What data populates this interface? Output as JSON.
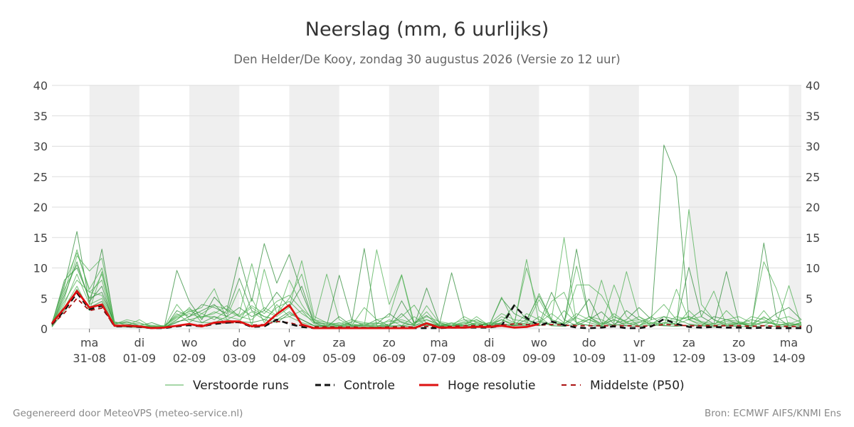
{
  "chart_data": {
    "type": "line",
    "title": "Neerslag (mm, 6 uurlijks)",
    "subtitle": "Den Helder/De Kooy, zondag 30 augustus 2026 (Versie zo 12 uur)",
    "ylim": [
      0,
      40
    ],
    "yticks": [
      0,
      5,
      10,
      15,
      20,
      25,
      30,
      35,
      40
    ],
    "days": [
      {
        "weekday": "ma",
        "date": "31-08"
      },
      {
        "weekday": "di",
        "date": "01-09"
      },
      {
        "weekday": "wo",
        "date": "02-09"
      },
      {
        "weekday": "do",
        "date": "03-09"
      },
      {
        "weekday": "vr",
        "date": "04-09"
      },
      {
        "weekday": "za",
        "date": "05-09"
      },
      {
        "weekday": "zo",
        "date": "06-09"
      },
      {
        "weekday": "ma",
        "date": "07-09"
      },
      {
        "weekday": "di",
        "date": "08-09"
      },
      {
        "weekday": "wo",
        "date": "09-09"
      },
      {
        "weekday": "do",
        "date": "10-09"
      },
      {
        "weekday": "vr",
        "date": "11-09"
      },
      {
        "weekday": "za",
        "date": "12-09"
      },
      {
        "weekday": "zo",
        "date": "13-09"
      },
      {
        "weekday": "ma",
        "date": "14-09"
      }
    ],
    "x_hours_from_start": [
      -18,
      -12,
      -6,
      0,
      6,
      12,
      18,
      24,
      30,
      36,
      42,
      48,
      54,
      60,
      66,
      72,
      78,
      84,
      90,
      96,
      102,
      108,
      114,
      120,
      126,
      132,
      138,
      144,
      150,
      156,
      162,
      168,
      174,
      180,
      186,
      192,
      198,
      204,
      210,
      216,
      222,
      228,
      234,
      240,
      246,
      252,
      258,
      264,
      270,
      276,
      282,
      288,
      294,
      300,
      306,
      312,
      318,
      324,
      330,
      336,
      342
    ],
    "x_range_hours": [
      -18,
      342
    ],
    "shaded_days_index": [
      0,
      2,
      4,
      6,
      8,
      10,
      12,
      14
    ],
    "legend": {
      "placement": "bottom",
      "items": [
        {
          "label": "Verstoorde runs",
          "color": "#4caf50",
          "style": "thin"
        },
        {
          "label": "Controle",
          "color": "#111111",
          "style": "dashed"
        },
        {
          "label": "Hoge resolutie",
          "color": "#dd1111",
          "style": "solid"
        },
        {
          "label": "Middelste (P50)",
          "color": "#aa1111",
          "style": "dashed"
        }
      ]
    },
    "series": [
      {
        "name": "Controle",
        "values": [
          0.8,
          3.0,
          5.9,
          3.2,
          3.8,
          0.4,
          0.4,
          0.3,
          0.1,
          0.1,
          0.4,
          0.6,
          0.4,
          0.8,
          1.0,
          1.1,
          0.3,
          0.4,
          1.5,
          0.8,
          0.3,
          0.1,
          0.1,
          0.1,
          0.1,
          0.1,
          0.1,
          0.1,
          0.1,
          0.1,
          0.1,
          0.1,
          0.2,
          0.2,
          0.2,
          0.2,
          0.5,
          3.8,
          1.8,
          0.5,
          1.2,
          0.6,
          0.2,
          0.1,
          0.2,
          0.4,
          0.1,
          0.1,
          0.4,
          1.6,
          0.8,
          0.3,
          0.2,
          0.3,
          0.2,
          0.2,
          0.1,
          0.2,
          0.1,
          0.1,
          0.1
        ]
      },
      {
        "name": "Hoge resolutie",
        "values": [
          0.9,
          3.4,
          6.2,
          3.5,
          4.0,
          0.5,
          0.5,
          0.4,
          0.1,
          0.2,
          0.5,
          0.8,
          0.4,
          1.0,
          1.2,
          1.2,
          0.4,
          0.6,
          2.4,
          3.9,
          0.7,
          0.1,
          0.1,
          0.1,
          0.1,
          0.1,
          0.1,
          0.1,
          0.1,
          0.1,
          0.9,
          0.2,
          0.2,
          0.2,
          0.3,
          0.3,
          0.5,
          0.2,
          0.3,
          0.8
        ]
      },
      {
        "name": "Middelste (P50)",
        "values": [
          0.7,
          2.6,
          5.0,
          3.0,
          3.4,
          0.5,
          0.4,
          0.3,
          0.2,
          0.2,
          0.5,
          0.7,
          0.6,
          0.9,
          1.0,
          1.0,
          0.6,
          0.7,
          1.2,
          1.0,
          0.5,
          0.3,
          0.3,
          0.3,
          0.3,
          0.2,
          0.2,
          0.3,
          0.3,
          0.3,
          0.4,
          0.3,
          0.4,
          0.5,
          0.5,
          0.5,
          0.6,
          0.8,
          0.7,
          0.6,
          0.7,
          0.6,
          0.5,
          0.5,
          0.5,
          0.5,
          0.5,
          0.4,
          0.5,
          0.7,
          0.6,
          0.5,
          0.5,
          0.5,
          0.5,
          0.5,
          0.4,
          0.5,
          0.4,
          0.4,
          0.4
        ]
      },
      {
        "name": "Verstoorde runs",
        "values": [
          1.0,
          7.0,
          16.0,
          4.0,
          13.1,
          0.8,
          1.2,
          0.5,
          1.0,
          0.3,
          9.6,
          4.5,
          1.5,
          5.2,
          3.0,
          11.8,
          4.5,
          14.0,
          7.5,
          12.2,
          6.0,
          1.0,
          0.8,
          0.6,
          1.0,
          13.2,
          0.5,
          0.5,
          2.5,
          0.5,
          6.7,
          1.0,
          0.5,
          0.8,
          1.5,
          0.5,
          5.0,
          2.5,
          1.5,
          0.8,
          6.0,
          1.5,
          0.5,
          1.5,
          2.8,
          0.8,
          1.5,
          3.5,
          1.5,
          30.2,
          25.0,
          1.5,
          3.0,
          1.5,
          0.5,
          0.8,
          1.5,
          1.0,
          0.8,
          0.5,
          0.8
        ]
      },
      {
        "name": "Verstoorde runs",
        "values": [
          0.5,
          5.0,
          12.0,
          9.5,
          11.6,
          1.2,
          0.5,
          1.5,
          0.3,
          0.5,
          2.0,
          2.8,
          3.5,
          6.6,
          1.5,
          2.5,
          10.7,
          3.0,
          2.0,
          3.5,
          11.2,
          2.0,
          1.0,
          0.5,
          0.8,
          0.5,
          13.0,
          4.0,
          8.9,
          1.0,
          1.5,
          0.5,
          0.8,
          0.5,
          2.0,
          0.5,
          1.5,
          0.8,
          10.0,
          3.0,
          1.5,
          15.0,
          0.8,
          2.0,
          1.5,
          0.5,
          1.0,
          2.0,
          0.5,
          1.0,
          0.5,
          19.6,
          4.0,
          1.5,
          0.8,
          0.5,
          2.0,
          1.5,
          0.5,
          1.0,
          0.5
        ]
      },
      {
        "name": "Verstoorde runs",
        "values": [
          0.6,
          6.0,
          13.0,
          6.0,
          8.0,
          0.5,
          0.3,
          0.5,
          0.2,
          0.2,
          1.5,
          3.0,
          2.0,
          2.5,
          3.8,
          2.0,
          1.5,
          3.5,
          2.2,
          8.0,
          4.0,
          1.0,
          9.0,
          1.5,
          0.5,
          3.5,
          1.5,
          2.0,
          8.8,
          0.5,
          3.8,
          1.0,
          0.5,
          2.0,
          1.0,
          0.5,
          1.5,
          0.5,
          11.4,
          1.0,
          2.5,
          1.0,
          10.3,
          2.0,
          0.5,
          7.2,
          2.0,
          0.5,
          1.5,
          2.0,
          0.5,
          3.0,
          1.0,
          0.5,
          0.8,
          1.0,
          0.5,
          3.0,
          0.5,
          0.8,
          0.5
        ]
      },
      {
        "name": "Verstoorde runs",
        "values": [
          0.8,
          8.0,
          10.0,
          5.0,
          6.0,
          1.0,
          0.8,
          0.5,
          0.3,
          0.2,
          1.0,
          2.0,
          4.0,
          3.5,
          2.5,
          8.3,
          3.0,
          2.0,
          1.5,
          2.8,
          1.5,
          0.5,
          0.5,
          8.8,
          1.5,
          0.5,
          0.8,
          2.5,
          1.0,
          0.5,
          1.0,
          0.5,
          9.2,
          1.5,
          0.5,
          1.0,
          0.8,
          0.5,
          1.5,
          5.4,
          1.5,
          0.8,
          13.1,
          2.0,
          0.8,
          1.5,
          0.5,
          1.0,
          2.0,
          0.5,
          1.0,
          10.1,
          2.0,
          0.8,
          9.4,
          1.0,
          0.5,
          14.1,
          2.0,
          0.5,
          1.0
        ]
      },
      {
        "name": "Verstoorde runs",
        "values": [
          0.4,
          4.0,
          9.0,
          4.0,
          5.0,
          0.5,
          0.5,
          0.3,
          0.2,
          0.3,
          4.0,
          1.5,
          2.0,
          2.0,
          1.5,
          1.0,
          5.0,
          1.0,
          4.0,
          2.0,
          1.0,
          0.5,
          0.5,
          0.5,
          0.5,
          0.8,
          1.0,
          0.5,
          2.0,
          3.9,
          0.8,
          0.5,
          0.5,
          0.8,
          1.5,
          0.5,
          5.2,
          1.0,
          0.5,
          2.0,
          0.5,
          1.0,
          7.2,
          7.2,
          5.5,
          2.0,
          1.0,
          0.5,
          2.0,
          4.0,
          1.5,
          2.0,
          1.0,
          0.5,
          3.0,
          1.0,
          0.8,
          11.0,
          6.6,
          0.5,
          0.8
        ]
      },
      {
        "name": "Verstoorde runs",
        "values": [
          0.5,
          3.5,
          7.0,
          3.0,
          9.4,
          0.8,
          1.5,
          1.0,
          0.3,
          0.2,
          1.5,
          3.5,
          1.0,
          1.0,
          2.0,
          6.6,
          0.5,
          9.8,
          2.5,
          5.0,
          9.0,
          1.5,
          0.5,
          1.0,
          0.5,
          0.5,
          0.5,
          0.5,
          0.5,
          0.8,
          2.8,
          0.5,
          1.0,
          0.5,
          1.0,
          0.5,
          0.8,
          0.5,
          1.0,
          0.5,
          4.5,
          6.0,
          1.0,
          0.5,
          8.0,
          1.0,
          9.4,
          2.0,
          1.0,
          0.5,
          6.5,
          1.5,
          2.0,
          6.2,
          0.5,
          1.0,
          0.5,
          2.0,
          0.5,
          7.1,
          0.5
        ]
      },
      {
        "name": "Verstoorde runs",
        "values": [
          0.6,
          5.5,
          11.0,
          4.5,
          7.0,
          0.5,
          0.5,
          0.3,
          0.2,
          0.1,
          3.0,
          2.0,
          3.0,
          4.0,
          2.0,
          3.5,
          2.0,
          3.0,
          6.0,
          3.5,
          7.0,
          1.0,
          0.3,
          2.0,
          0.5,
          0.5,
          1.5,
          0.5,
          4.6,
          1.0,
          2.2,
          0.5,
          0.5,
          0.5,
          0.8,
          0.5,
          1.0,
          4.0,
          1.5,
          0.5,
          1.0,
          0.8,
          2.0,
          4.9,
          1.0,
          0.5,
          3.0,
          1.5,
          0.8,
          2.0,
          1.5,
          0.8,
          0.5,
          2.0,
          1.5,
          0.8,
          0.5,
          1.0,
          2.5,
          3.5,
          1.5
        ]
      },
      {
        "name": "Verstoorde runs",
        "values": [
          0.5,
          4.5,
          8.0,
          6.0,
          5.5,
          0.8,
          0.4,
          0.4,
          0.5,
          0.3,
          2.5,
          1.0,
          2.5,
          1.5,
          3.0,
          2.0,
          3.5,
          2.0,
          1.5,
          2.0,
          3.0,
          0.8,
          0.5,
          0.3,
          0.8,
          0.5,
          0.3,
          1.5,
          0.5,
          2.0,
          0.5,
          0.8,
          0.5,
          1.0,
          0.5,
          0.8,
          1.5,
          0.5,
          2.5,
          1.5,
          0.5,
          3.0,
          1.0,
          1.5,
          0.5,
          2.5,
          1.0,
          0.5,
          1.0,
          0.8,
          2.0,
          1.5,
          0.5,
          0.8,
          1.5,
          2.0,
          1.0,
          0.5,
          1.5,
          2.0,
          1.0
        ]
      },
      {
        "name": "Verstoorde runs",
        "values": [
          0.7,
          6.5,
          10.5,
          5.0,
          9.0,
          0.6,
          0.6,
          0.5,
          0.4,
          0.4,
          1.8,
          2.5,
          1.8,
          2.8,
          2.0,
          1.5,
          2.8,
          1.5,
          3.5,
          4.5,
          2.5,
          1.2,
          0.8,
          0.5,
          1.2,
          0.8,
          0.5,
          0.8,
          1.2,
          0.5,
          1.5,
          0.8,
          0.5,
          1.2,
          0.8,
          0.5,
          2.0,
          1.0,
          0.8,
          4.8,
          1.2,
          0.5,
          1.8,
          1.0,
          0.5,
          1.5,
          0.8,
          1.2,
          0.5,
          1.0,
          0.8,
          1.5,
          0.8,
          0.5,
          1.2,
          0.8,
          0.5,
          1.2,
          0.8,
          0.5,
          1.0
        ]
      },
      {
        "name": "Verstoorde runs",
        "values": [
          0.3,
          3.0,
          6.5,
          3.5,
          4.5,
          0.4,
          0.3,
          0.2,
          0.1,
          0.2,
          1.2,
          1.5,
          1.0,
          2.0,
          1.0,
          1.2,
          1.0,
          1.5,
          1.0,
          2.5,
          1.5,
          0.5,
          0.3,
          0.3,
          0.4,
          0.3,
          0.3,
          0.4,
          0.5,
          0.3,
          0.6,
          0.4,
          0.3,
          0.5,
          0.4,
          0.3,
          0.8,
          0.5,
          0.6,
          1.2,
          0.5,
          0.4,
          0.8,
          0.6,
          0.4,
          0.7,
          0.5,
          0.4,
          0.6,
          0.5,
          0.4,
          0.6,
          0.5,
          0.3,
          0.5,
          0.4,
          0.3,
          0.5,
          0.4,
          0.3,
          0.4
        ]
      },
      {
        "name": "Verstoorde runs",
        "values": [
          0.9,
          7.5,
          12.5,
          6.5,
          10.0,
          1.0,
          1.0,
          0.8,
          0.6,
          0.5,
          2.2,
          3.2,
          2.5,
          3.8,
          3.2,
          2.2,
          3.8,
          2.5,
          4.5,
          5.5,
          3.2,
          1.5,
          1.0,
          0.8,
          1.5,
          1.0,
          0.8,
          1.2,
          1.5,
          0.8,
          2.0,
          1.2,
          0.8,
          1.5,
          1.2,
          0.8,
          2.5,
          1.5,
          1.2,
          5.8,
          1.5,
          0.8,
          2.5,
          1.5,
          0.8,
          2.0,
          1.2,
          1.5,
          0.8,
          1.5,
          1.2,
          2.0,
          1.2,
          0.8,
          1.5,
          1.2,
          0.8,
          1.8,
          1.2,
          0.8,
          1.5
        ]
      }
    ]
  },
  "footer": {
    "left": "Gegenereerd door MeteoVPS (meteo-service.nl)",
    "right": "Bron: ECMWF AIFS/KNMI Ens"
  },
  "colors": {
    "ensemble": "#4caf50",
    "ensemble_dark": "#2e8b37",
    "control": "#111111",
    "hires": "#dd1111",
    "median": "#aa1111",
    "shade": "#efefef",
    "grid": "#dddddd"
  }
}
